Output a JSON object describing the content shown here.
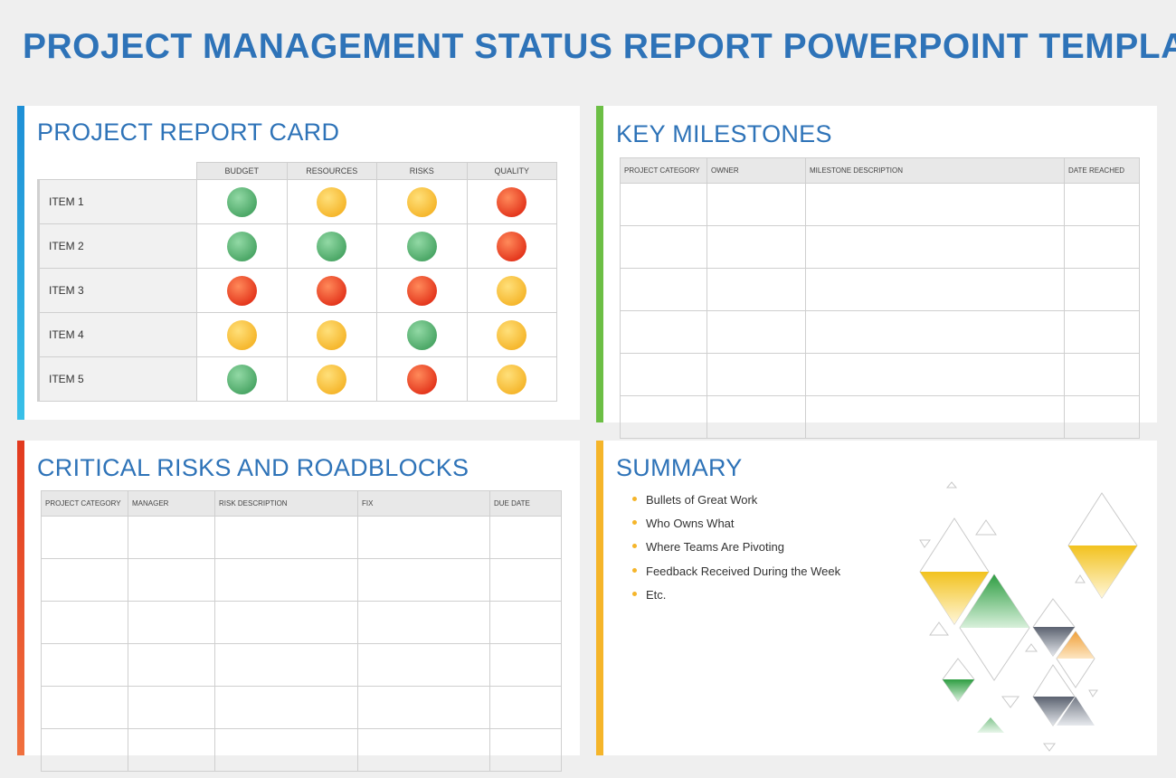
{
  "page": {
    "title": "PROJECT MANAGEMENT STATUS REPORT POWERPOINT TEMPLATE"
  },
  "colors": {
    "title": "#2e73b8",
    "green": "#49a564",
    "yellow": "#f5b52a",
    "red": "#e3341b",
    "accent_blue": "#29a6e0",
    "accent_green": "#6cbf45",
    "accent_red": "#e8472a",
    "accent_yellow": "#f5b52a"
  },
  "report_card": {
    "title": "PROJECT REPORT CARD",
    "columns": [
      "BUDGET",
      "RESOURCES",
      "RISKS",
      "QUALITY"
    ],
    "rows": [
      {
        "label": "ITEM 1",
        "statuses": [
          "green",
          "yellow",
          "yellow",
          "red"
        ]
      },
      {
        "label": "ITEM 2",
        "statuses": [
          "green",
          "green",
          "green",
          "red"
        ]
      },
      {
        "label": "ITEM 3",
        "statuses": [
          "red",
          "red",
          "red",
          "yellow"
        ]
      },
      {
        "label": "ITEM 4",
        "statuses": [
          "yellow",
          "yellow",
          "green",
          "yellow"
        ]
      },
      {
        "label": "ITEM 5",
        "statuses": [
          "green",
          "yellow",
          "red",
          "yellow"
        ]
      }
    ]
  },
  "milestones": {
    "title": "KEY MILESTONES",
    "columns": [
      "PROJECT CATEGORY",
      "OWNER",
      "MILESTONE DESCRIPTION",
      "DATE REACHED"
    ]
  },
  "risks": {
    "title": "CRITICAL RISKS AND ROADBLOCKS",
    "columns": [
      "PROJECT CATEGORY",
      "MANAGER",
      "RISK DESCRIPTION",
      "FIX",
      "DUE DATE"
    ]
  },
  "summary": {
    "title": "SUMMARY",
    "bullets": [
      "Bullets of Great Work",
      "Who Owns What",
      "Where Teams Are Pivoting",
      "Feedback Received During the Week",
      "Etc."
    ]
  }
}
